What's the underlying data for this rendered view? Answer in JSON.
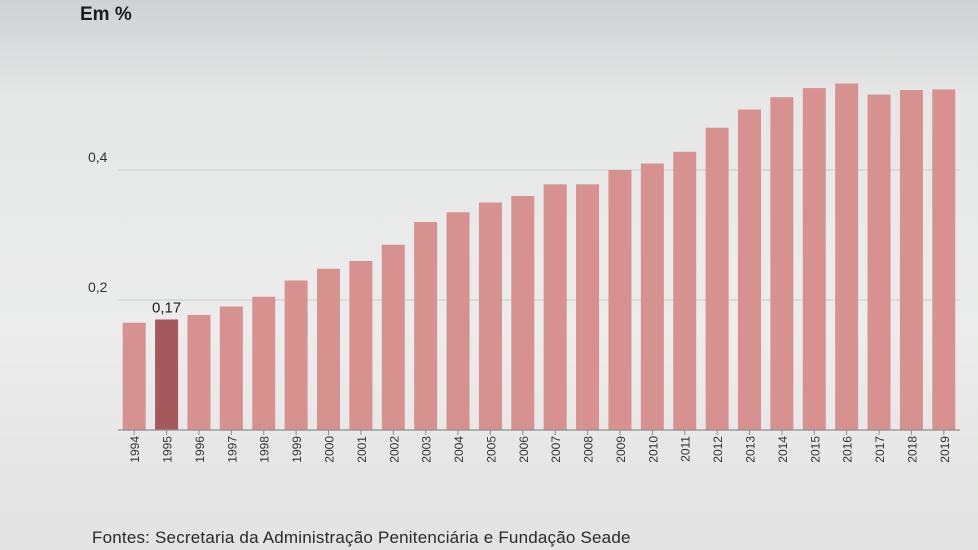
{
  "unit_label": "Em %",
  "source": "Fontes: Secretaria da Administração Penitenciária e Fundação Seade",
  "colors": {
    "bar": "#d7918f",
    "highlight": "#a5595c",
    "grid": "#c9cbcb",
    "axis": "#8e8e8e",
    "text": "#333333"
  },
  "chart_data": {
    "type": "bar",
    "title": "",
    "xlabel": "",
    "ylabel": "Em %",
    "ylim": [
      0,
      0.55
    ],
    "yticks": [
      {
        "value": 0.2,
        "label": "0,2"
      },
      {
        "value": 0.4,
        "label": "0,4"
      }
    ],
    "categories": [
      "1994",
      "1995",
      "1996",
      "1997",
      "1998",
      "1999",
      "2000",
      "2001",
      "2002",
      "2003",
      "2004",
      "2005",
      "2006",
      "2007",
      "2008",
      "2009",
      "2010",
      "2011",
      "2012",
      "2013",
      "2014",
      "2015",
      "2016",
      "2017",
      "2018",
      "2019"
    ],
    "values": [
      0.165,
      0.17,
      0.177,
      0.19,
      0.205,
      0.23,
      0.248,
      0.26,
      0.285,
      0.32,
      0.335,
      0.35,
      0.36,
      0.378,
      0.378,
      0.4,
      0.41,
      0.428,
      0.465,
      0.493,
      0.512,
      0.526,
      0.533,
      0.516,
      0.523,
      0.524
    ],
    "highlight_index": 1,
    "annotations": [
      {
        "category": "1995",
        "label": "0,17"
      }
    ],
    "grid": true
  }
}
